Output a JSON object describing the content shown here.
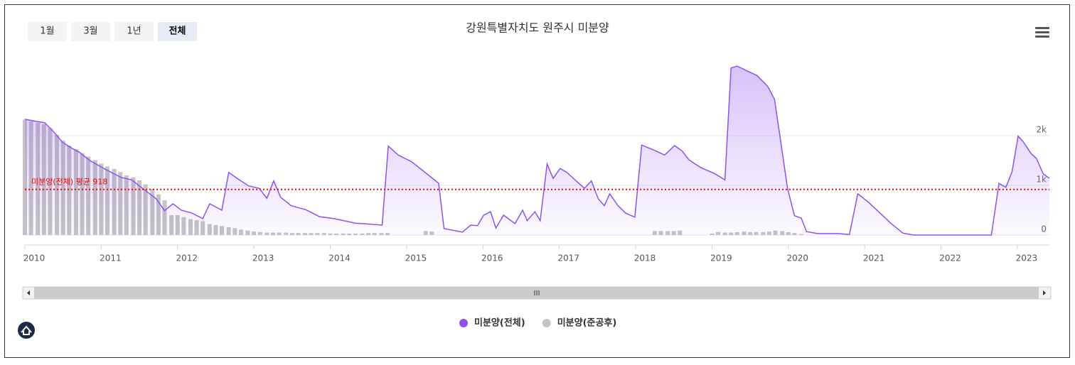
{
  "range_buttons": [
    "1월",
    "3월",
    "1년",
    "전체"
  ],
  "selected_button": 3,
  "chart_data": {
    "type": "line",
    "title": "강원특별자치도 원주시 미분양",
    "xlim": [
      2010,
      2023.42
    ],
    "xticks": [
      2010,
      2011,
      2012,
      2013,
      2014,
      2015,
      2016,
      2017,
      2018,
      2019,
      2020,
      2021,
      2022,
      2023
    ],
    "ylim": [
      0,
      3500
    ],
    "yticks": [
      0,
      {
        "value": 1000,
        "label": "1k"
      },
      {
        "value": 2000,
        "label": "2k"
      }
    ],
    "grid": true,
    "legend": "bottom",
    "average": {
      "value": 918,
      "label": "미분양(전체) 평균 918",
      "color": "#ff0000"
    },
    "series": [
      {
        "name": "미분양(전체)",
        "type": "area",
        "color": "#8e52f0",
        "x": [
          2010.0,
          2010.14,
          2010.26,
          2010.37,
          2010.49,
          2010.6,
          2010.72,
          2010.84,
          2011.0,
          2011.12,
          2011.26,
          2011.4,
          2011.54,
          2011.72,
          2011.83,
          2011.94,
          2012.05,
          2012.19,
          2012.33,
          2012.42,
          2012.58,
          2012.67,
          2012.79,
          2012.93,
          2013.07,
          2013.17,
          2013.26,
          2013.35,
          2013.49,
          2013.68,
          2013.86,
          2014.05,
          2014.33,
          2014.68,
          2014.76,
          2014.89,
          2015.07,
          2015.21,
          2015.42,
          2015.49,
          2015.73,
          2015.84,
          2015.93,
          2016.01,
          2016.1,
          2016.17,
          2016.27,
          2016.42,
          2016.52,
          2016.58,
          2016.68,
          2016.75,
          2016.84,
          2016.92,
          2017.01,
          2017.1,
          2017.22,
          2017.33,
          2017.42,
          2017.51,
          2017.59,
          2017.66,
          2017.77,
          2017.87,
          2017.99,
          2018.08,
          2018.24,
          2018.38,
          2018.51,
          2018.61,
          2018.7,
          2018.85,
          2019.03,
          2019.17,
          2019.25,
          2019.33,
          2019.45,
          2019.59,
          2019.73,
          2019.82,
          2019.99,
          2020.08,
          2020.17,
          2020.24,
          2020.38,
          2020.66,
          2020.8,
          2020.91,
          2021.05,
          2021.21,
          2021.34,
          2021.5,
          2021.64,
          2022.66,
          2022.76,
          2022.85,
          2022.93,
          2023.01,
          2023.08,
          2023.18,
          2023.25,
          2023.34,
          2023.42
        ],
        "values": [
          2330,
          2290,
          2260,
          2090,
          1870,
          1760,
          1660,
          1510,
          1370,
          1270,
          1160,
          1110,
          940,
          730,
          490,
          630,
          500,
          440,
          330,
          630,
          500,
          1260,
          1130,
          990,
          940,
          740,
          1090,
          760,
          590,
          510,
          370,
          330,
          240,
          200,
          1790,
          1610,
          1470,
          1300,
          1040,
          130,
          60,
          200,
          190,
          400,
          470,
          140,
          400,
          230,
          500,
          290,
          470,
          290,
          1430,
          1140,
          1340,
          1260,
          1090,
          940,
          1090,
          730,
          590,
          830,
          590,
          440,
          360,
          1810,
          1710,
          1610,
          1800,
          1690,
          1510,
          1360,
          1240,
          1110,
          3360,
          3400,
          3310,
          3210,
          2990,
          2730,
          940,
          390,
          340,
          70,
          30,
          30,
          10,
          830,
          660,
          430,
          240,
          40,
          0,
          0,
          1040,
          960,
          1270,
          1990,
          1870,
          1640,
          1540,
          1230,
          1140
        ]
      },
      {
        "name": "미분양(준공후)",
        "type": "column",
        "color": "#c4c4c4",
        "x": [
          2010.0,
          2010.08,
          2010.17,
          2010.25,
          2010.33,
          2010.42,
          2010.5,
          2010.58,
          2010.67,
          2010.75,
          2010.83,
          2010.92,
          2011.0,
          2011.08,
          2011.17,
          2011.25,
          2011.33,
          2011.42,
          2011.5,
          2011.58,
          2011.67,
          2011.75,
          2011.83,
          2011.92,
          2012.0,
          2012.08,
          2012.17,
          2012.25,
          2012.33,
          2012.42,
          2012.5,
          2012.58,
          2012.67,
          2012.75,
          2012.83,
          2012.92,
          2013.0,
          2013.08,
          2013.17,
          2013.25,
          2013.33,
          2013.42,
          2013.5,
          2013.58,
          2013.67,
          2013.75,
          2013.83,
          2013.92,
          2014.0,
          2014.08,
          2014.17,
          2014.25,
          2014.33,
          2014.42,
          2014.5,
          2014.58,
          2014.67,
          2014.75,
          2015.25,
          2015.33,
          2018.25,
          2018.33,
          2018.42,
          2018.5,
          2018.58,
          2019.0,
          2019.08,
          2019.17,
          2019.25,
          2019.33,
          2019.42,
          2019.5,
          2019.58,
          2019.67,
          2019.75,
          2019.83,
          2019.92,
          2020.0,
          2020.08,
          2020.17
        ],
        "values": [
          2320,
          2290,
          2260,
          2230,
          2150,
          2020,
          1900,
          1800,
          1730,
          1650,
          1580,
          1510,
          1440,
          1380,
          1330,
          1270,
          1200,
          1160,
          1100,
          1020,
          930,
          820,
          700,
          400,
          400,
          360,
          320,
          300,
          280,
          220,
          200,
          180,
          160,
          140,
          110,
          90,
          70,
          60,
          50,
          50,
          50,
          50,
          40,
          40,
          40,
          40,
          40,
          40,
          30,
          30,
          30,
          30,
          30,
          30,
          40,
          40,
          40,
          40,
          80,
          70,
          80,
          80,
          80,
          80,
          90,
          30,
          60,
          50,
          50,
          60,
          70,
          60,
          60,
          60,
          70,
          90,
          80,
          60,
          40,
          20
        ]
      }
    ]
  }
}
